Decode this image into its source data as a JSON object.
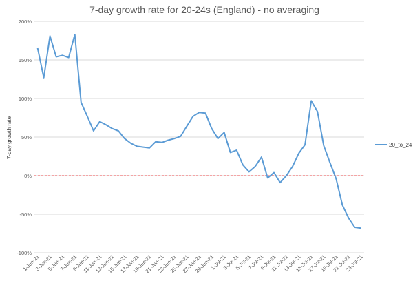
{
  "chart_data": {
    "type": "line",
    "title": "7-day growth rate for 20-24s (England) - no averaging",
    "ylabel": "7-day growth rate",
    "xlabel": "",
    "ylim": [
      -1.0,
      2.0
    ],
    "yticks": [
      {
        "value": 2.0,
        "label": "200%"
      },
      {
        "value": 1.5,
        "label": "150%"
      },
      {
        "value": 1.0,
        "label": "100%"
      },
      {
        "value": 0.5,
        "label": "50%"
      },
      {
        "value": 0.0,
        "label": "0%"
      },
      {
        "value": -0.5,
        "label": "-50%"
      },
      {
        "value": -1.0,
        "label": "-100%"
      }
    ],
    "grid": true,
    "reference_line": {
      "value": 0,
      "color": "#e8484b",
      "style": "dashed"
    },
    "x": [
      "1-Jun-21",
      "2-Jun-21",
      "3-Jun-21",
      "4-Jun-21",
      "5-Jun-21",
      "6-Jun-21",
      "7-Jun-21",
      "8-Jun-21",
      "9-Jun-21",
      "10-Jun-21",
      "11-Jun-21",
      "12-Jun-21",
      "13-Jun-21",
      "14-Jun-21",
      "15-Jun-21",
      "16-Jun-21",
      "17-Jun-21",
      "18-Jun-21",
      "19-Jun-21",
      "20-Jun-21",
      "21-Jun-21",
      "22-Jun-21",
      "23-Jun-21",
      "24-Jun-21",
      "25-Jun-21",
      "26-Jun-21",
      "27-Jun-21",
      "28-Jun-21",
      "29-Jun-21",
      "30-Jun-21",
      "1-Jul-21",
      "2-Jul-21",
      "3-Jul-21",
      "4-Jul-21",
      "5-Jul-21",
      "6-Jul-21",
      "7-Jul-21",
      "8-Jul-21",
      "9-Jul-21",
      "10-Jul-21",
      "11-Jul-21",
      "12-Jul-21",
      "13-Jul-21",
      "14-Jul-21",
      "15-Jul-21",
      "16-Jul-21",
      "17-Jul-21",
      "18-Jul-21",
      "19-Jul-21",
      "20-Jul-21",
      "21-Jul-21",
      "22-Jul-21",
      "23-Jul-21"
    ],
    "x_tick_labels": [
      "1-Jun-21",
      "3-Jun-21",
      "5-Jun-21",
      "7-Jun-21",
      "9-Jun-21",
      "11-Jun-21",
      "13-Jun-21",
      "15-Jun-21",
      "17-Jun-21",
      "19-Jun-21",
      "21-Jun-21",
      "23-Jun-21",
      "25-Jun-21",
      "27-Jun-21",
      "29-Jun-21",
      "1-Jul-21",
      "3-Jul-21",
      "5-Jul-21",
      "7-Jul-21",
      "9-Jul-21",
      "11-Jul-21",
      "13-Jul-21",
      "15-Jul-21",
      "17-Jul-21",
      "19-Jul-21",
      "21-Jul-21",
      "23-Jul-21"
    ],
    "series": [
      {
        "name": "20_to_24",
        "color": "#5b9bd5",
        "values": [
          1.66,
          1.27,
          1.81,
          1.54,
          1.56,
          1.53,
          1.83,
          0.95,
          0.77,
          0.58,
          0.7,
          0.66,
          0.61,
          0.58,
          0.48,
          0.42,
          0.38,
          0.37,
          0.36,
          0.44,
          0.43,
          0.46,
          0.48,
          0.51,
          0.64,
          0.77,
          0.82,
          0.81,
          0.61,
          0.48,
          0.56,
          0.3,
          0.33,
          0.14,
          0.05,
          0.12,
          0.24,
          -0.03,
          0.04,
          -0.09,
          0.0,
          0.12,
          0.29,
          0.4,
          0.97,
          0.83,
          0.39,
          0.17,
          -0.04,
          -0.38,
          -0.55,
          -0.67,
          -0.68
        ]
      }
    ],
    "legend": {
      "position": "right",
      "entries": [
        "20_to_24"
      ]
    }
  }
}
